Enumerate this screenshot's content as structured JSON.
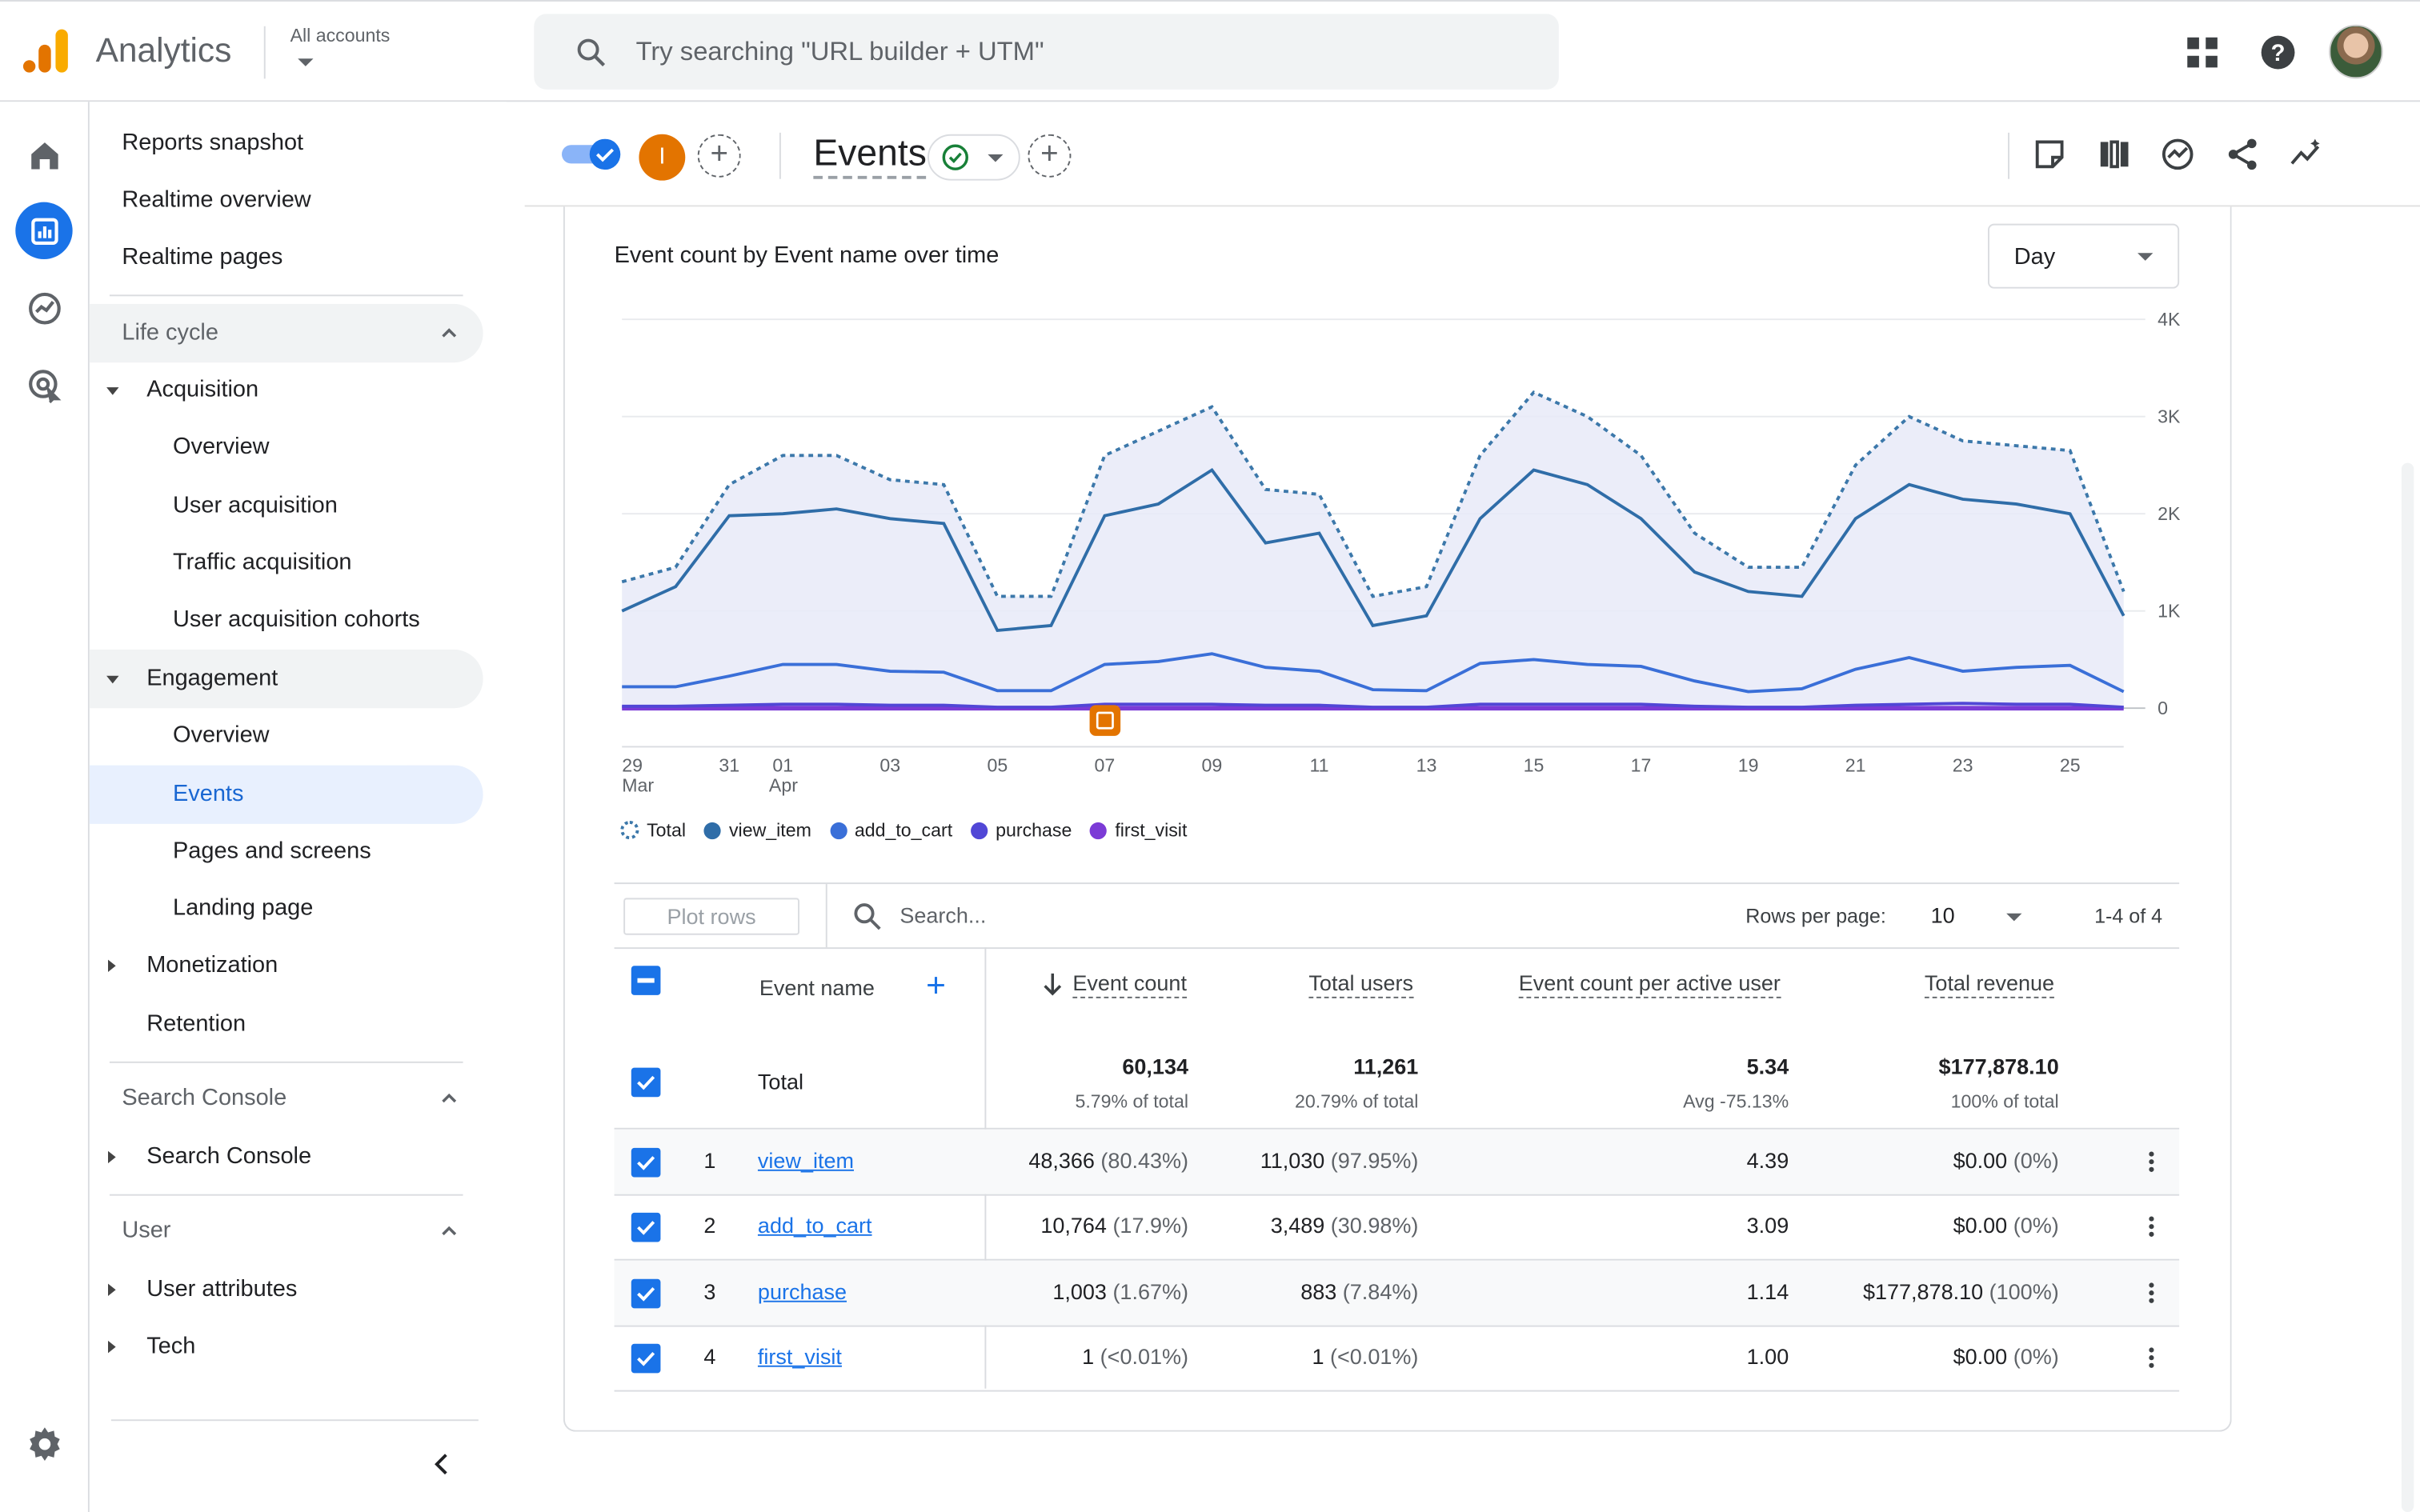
{
  "header": {
    "app_title": "Analytics",
    "account_label": "All accounts",
    "search_placeholder": "Try searching \"URL builder + UTM\""
  },
  "sidebar": {
    "top_items": [
      "Reports snapshot",
      "Realtime overview",
      "Realtime pages"
    ],
    "lifecycle": {
      "label": "Life cycle",
      "acquisition": "Acquisition",
      "acquisition_items": [
        "Overview",
        "User acquisition",
        "Traffic acquisition",
        "User acquisition cohorts"
      ],
      "engagement": "Engagement",
      "engagement_items": [
        "Overview",
        "Events",
        "Pages and screens",
        "Landing page"
      ],
      "monetization": "Monetization",
      "retention": "Retention"
    },
    "search_console": {
      "label": "Search Console",
      "item": "Search Console"
    },
    "user": {
      "label": "User",
      "items": [
        "User attributes",
        "Tech"
      ]
    }
  },
  "report": {
    "title": "Events",
    "comparison_badge": "I",
    "chart_title": "Event count by Event name over time",
    "granularity": "Day"
  },
  "chart_data": {
    "type": "line",
    "title": "Event count by Event name over time",
    "x": [
      "Mar 29",
      "Mar 30",
      "Mar 31",
      "Apr 01",
      "Apr 02",
      "Apr 03",
      "Apr 04",
      "Apr 05",
      "Apr 06",
      "Apr 07",
      "Apr 08",
      "Apr 09",
      "Apr 10",
      "Apr 11",
      "Apr 12",
      "Apr 13",
      "Apr 14",
      "Apr 15",
      "Apr 16",
      "Apr 17",
      "Apr 18",
      "Apr 19",
      "Apr 20",
      "Apr 21",
      "Apr 22",
      "Apr 23",
      "Apr 24",
      "Apr 25",
      "Apr 26"
    ],
    "x_tick_labels": [
      "29",
      "31",
      "01",
      "03",
      "05",
      "07",
      "09",
      "11",
      "13",
      "15",
      "17",
      "19",
      "21",
      "23",
      "25"
    ],
    "x_tick_sublabels": {
      "29": "Mar",
      "01": "Apr"
    },
    "y_tick_labels": [
      "0",
      "1K",
      "2K",
      "3K",
      "4K"
    ],
    "ylim": [
      0,
      4000
    ],
    "grid": true,
    "legend_position": "bottom-left",
    "series": [
      {
        "name": "Total",
        "color": "#3c78aa",
        "style": "dotted",
        "values": [
          1300,
          1450,
          2300,
          2600,
          2600,
          2350,
          2300,
          1150,
          1150,
          2600,
          2850,
          3100,
          2250,
          2200,
          1150,
          1250,
          2600,
          3250,
          3000,
          2600,
          1800,
          1450,
          1450,
          2500,
          3000,
          2750,
          2700,
          2650,
          1200
        ]
      },
      {
        "name": "view_item",
        "color": "#2f6da8",
        "values": [
          1000,
          1250,
          1980,
          2000,
          2050,
          1950,
          1900,
          800,
          850,
          1980,
          2100,
          2450,
          1700,
          1800,
          850,
          950,
          1950,
          2450,
          2300,
          1950,
          1400,
          1200,
          1150,
          1950,
          2300,
          2150,
          2100,
          2000,
          950
        ]
      },
      {
        "name": "add_to_cart",
        "color": "#3a6fd8",
        "values": [
          220,
          220,
          330,
          450,
          450,
          380,
          370,
          180,
          180,
          450,
          480,
          560,
          420,
          380,
          190,
          180,
          460,
          500,
          450,
          430,
          280,
          170,
          200,
          400,
          520,
          380,
          420,
          440,
          170
        ]
      },
      {
        "name": "purchase",
        "color": "#5147d6",
        "values": [
          20,
          20,
          30,
          40,
          40,
          30,
          30,
          10,
          10,
          40,
          40,
          40,
          30,
          30,
          10,
          10,
          40,
          40,
          40,
          40,
          20,
          10,
          10,
          30,
          40,
          50,
          40,
          40,
          10
        ]
      },
      {
        "name": "first_visit",
        "color": "#7b3bd6",
        "values": [
          0,
          0,
          0,
          0,
          0,
          0,
          0,
          0,
          0,
          0,
          0,
          0,
          0,
          0,
          0,
          0,
          0,
          0,
          0,
          0,
          0,
          0,
          0,
          0,
          0,
          0,
          0,
          0,
          0
        ]
      }
    ]
  },
  "table_toolbar": {
    "plot_rows": "Plot rows",
    "search_placeholder": "Search...",
    "rows_per_page_label": "Rows per page:",
    "rows_per_page": "10",
    "pager": "1-4 of 4"
  },
  "table": {
    "columns": [
      "Event name",
      "Event count",
      "Total users",
      "Event count per active user",
      "Total revenue"
    ],
    "total": {
      "label": "Total",
      "event_count": "60,134",
      "event_count_sub": "5.79% of total",
      "total_users": "11,261",
      "total_users_sub": "20.79% of total",
      "per_user": "5.34",
      "per_user_sub": "Avg -75.13%",
      "revenue": "$177,878.10",
      "revenue_sub": "100% of total"
    },
    "rows": [
      {
        "num": "1",
        "name": "view_item",
        "count": "48,366",
        "count_pct": "(80.43%)",
        "users": "11,030",
        "users_pct": "(97.95%)",
        "per_user": "4.39",
        "revenue": "$0.00",
        "revenue_pct": "(0%)"
      },
      {
        "num": "2",
        "name": "add_to_cart",
        "count": "10,764",
        "count_pct": "(17.9%)",
        "users": "3,489",
        "users_pct": "(30.98%)",
        "per_user": "3.09",
        "revenue": "$0.00",
        "revenue_pct": "(0%)"
      },
      {
        "num": "3",
        "name": "purchase",
        "count": "1,003",
        "count_pct": "(1.67%)",
        "users": "883",
        "users_pct": "(7.84%)",
        "per_user": "1.14",
        "revenue": "$177,878.10",
        "revenue_pct": "(100%)"
      },
      {
        "num": "4",
        "name": "first_visit",
        "count": "1",
        "count_pct": "(<0.01%)",
        "users": "1",
        "users_pct": "(<0.01%)",
        "per_user": "1.00",
        "revenue": "$0.00",
        "revenue_pct": "(0%)"
      }
    ]
  }
}
